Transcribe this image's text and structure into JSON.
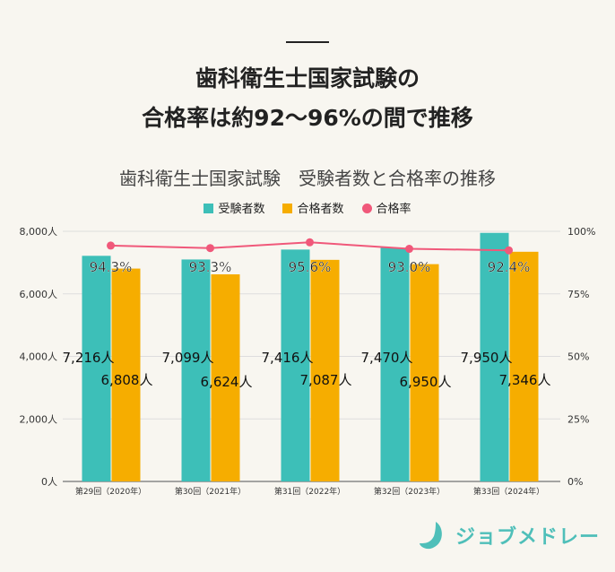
{
  "headline": {
    "line1": "歯科衛生士国家試験の",
    "line2": "合格率は約92～96%の間で推移"
  },
  "brand": {
    "name": "ジョブメドレー",
    "color": "#4fbfb9"
  },
  "chart_data": {
    "type": "bar",
    "title": "歯科衛生士国家試験　受験者数と合格率の推移",
    "categories": [
      "第29回（2020年）",
      "第30回（2021年）",
      "第31回（2022年）",
      "第32回（2023年）",
      "第33回（2024年）"
    ],
    "series": [
      {
        "name": "受験者数",
        "type": "bar",
        "axis": "left",
        "color": "#3dbfb8",
        "values": [
          7216,
          7099,
          7416,
          7470,
          7950
        ],
        "labels": [
          "7,216人",
          "7,099人",
          "7,416人",
          "7,470人",
          "7,950人"
        ]
      },
      {
        "name": "合格者数",
        "type": "bar",
        "axis": "left",
        "color": "#f6ad00",
        "values": [
          6808,
          6624,
          7087,
          6950,
          7346
        ],
        "labels": [
          "6,808人",
          "6,624人",
          "7,087人",
          "6,950人",
          "7,346人"
        ]
      },
      {
        "name": "合格率",
        "type": "line",
        "axis": "right",
        "color": "#f0587a",
        "values": [
          94.3,
          93.3,
          95.6,
          93.0,
          92.4
        ],
        "labels": [
          "94.3%",
          "93.3%",
          "95.6%",
          "93.0%",
          "92.4%"
        ]
      }
    ],
    "y_left": {
      "range": [
        0,
        8000
      ],
      "ticks": [
        "0人",
        "2,000人",
        "4,000人",
        "6,000人",
        "8,000人"
      ]
    },
    "y_right": {
      "range": [
        0,
        100
      ],
      "ticks": [
        "0%",
        "25%",
        "50%",
        "75%",
        "100%"
      ]
    },
    "grid": true,
    "legend": "top"
  }
}
